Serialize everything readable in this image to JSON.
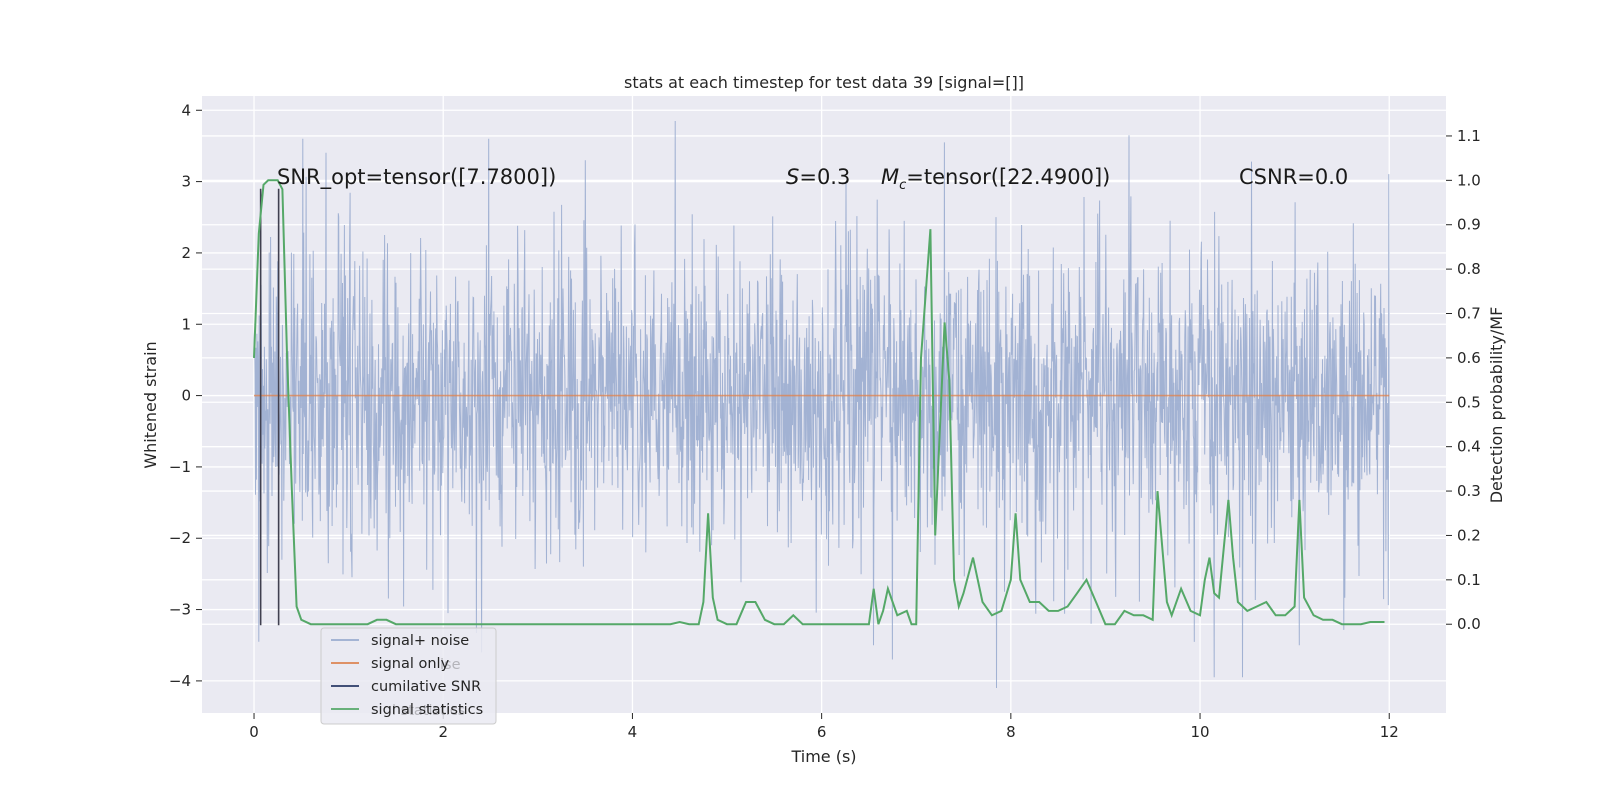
{
  "chart_data": {
    "type": "line",
    "title": "stats at each timestep for test data 39 [signal=[]]",
    "xlabel": "Time (s)",
    "ylabel_left": "Whitened strain",
    "ylabel_right": "Detection probability/MF",
    "xlim": [
      -0.55,
      12.6
    ],
    "ylim_left": [
      -4.45,
      4.2
    ],
    "ylim_right": [
      -0.2,
      1.19
    ],
    "x_ticks": [
      "0",
      "2",
      "4",
      "6",
      "8",
      "10",
      "12"
    ],
    "x_tick_values": [
      0,
      2,
      4,
      6,
      8,
      10,
      12
    ],
    "y_ticks_left": [
      "−4",
      "−3",
      "−2",
      "−1",
      "0",
      "1",
      "2",
      "3",
      "4"
    ],
    "y_tick_values_left": [
      -4,
      -3,
      -2,
      -1,
      0,
      1,
      2,
      3,
      4
    ],
    "y_ticks_right": [
      "0.0",
      "0.1",
      "0.2",
      "0.3",
      "0.4",
      "0.5",
      "0.6",
      "0.7",
      "0.8",
      "0.9",
      "1.0",
      "1.1"
    ],
    "y_tick_values_right": [
      0.0,
      0.1,
      0.2,
      0.3,
      0.4,
      0.5,
      0.6,
      0.7,
      0.8,
      0.9,
      1.0,
      1.1
    ],
    "annotations": {
      "snr_opt": "SNR_opt=tensor([7.7800])",
      "s_var": "S",
      "s_value": "=0.3",
      "mc_var": "M",
      "mc_sub": "c",
      "mc_value": "=tensor([22.4900])",
      "csnr": "CSNR=0.0"
    },
    "series": [
      {
        "name": "signal+ noise",
        "axis": "left",
        "color": "#9aaccf",
        "description_summary": {
          "x_range": [
            0,
            12
          ],
          "typical_range": [
            -1.2,
            1.2
          ],
          "extremes": [
            -4.1,
            3.85
          ]
        },
        "peaks": [
          {
            "x": 0.05,
            "y": -3.45
          },
          {
            "x": 4.45,
            "y": 3.85
          },
          {
            "x": 9.25,
            "y": 3.65
          },
          {
            "x": 7.3,
            "y": 3.55
          },
          {
            "x": 3.5,
            "y": 3.3
          },
          {
            "x": 7.85,
            "y": -4.1
          },
          {
            "x": 10.15,
            "y": -3.95
          },
          {
            "x": 10.45,
            "y": -3.95
          },
          {
            "x": 6.75,
            "y": -3.7
          },
          {
            "x": 6.55,
            "y": -3.5
          },
          {
            "x": 11.05,
            "y": -3.5
          },
          {
            "x": 8.85,
            "y": -3.2
          },
          {
            "x": 2.05,
            "y": -3.05
          }
        ]
      },
      {
        "name": "signal only",
        "axis": "left",
        "color": "#dd8452",
        "x": [
          0,
          12
        ],
        "y": [
          0,
          0
        ]
      },
      {
        "name": "cumilative SNR",
        "axis": "left",
        "color": "#2a3a66",
        "segments": [
          {
            "x": [
              0.07,
              0.07
            ],
            "y": [
              -3.22,
              2.9
            ]
          },
          {
            "x": 0.07,
            "y_min": -3.22,
            "y_max": 2.9
          },
          {
            "x": 0.26,
            "y_min": -3.22,
            "y_max": 2.9
          }
        ]
      },
      {
        "name": "signal statistics",
        "axis": "right",
        "color": "#55a868",
        "x": [
          0,
          0.05,
          0.1,
          0.15,
          0.2,
          0.25,
          0.3,
          0.35,
          0.4,
          0.45,
          0.5,
          0.6,
          0.7,
          0.8,
          1.0,
          1.1,
          1.2,
          1.3,
          1.4,
          1.5,
          1.6,
          1.8,
          1.9,
          2.0,
          2.1,
          2.4,
          2.8,
          3.2,
          3.6,
          4.0,
          4.2,
          4.4,
          4.5,
          4.6,
          4.7,
          4.75,
          4.8,
          4.85,
          4.9,
          5.0,
          5.1,
          5.2,
          5.3,
          5.4,
          5.5,
          5.6,
          5.7,
          5.8,
          6.0,
          6.2,
          6.4,
          6.5,
          6.55,
          6.6,
          6.65,
          6.7,
          6.8,
          6.9,
          6.95,
          7.0,
          7.05,
          7.15,
          7.2,
          7.3,
          7.35,
          7.4,
          7.45,
          7.5,
          7.6,
          7.7,
          7.8,
          7.9,
          8.0,
          8.05,
          8.1,
          8.2,
          8.3,
          8.4,
          8.5,
          8.6,
          8.7,
          8.8,
          8.9,
          9.0,
          9.1,
          9.2,
          9.3,
          9.4,
          9.5,
          9.55,
          9.65,
          9.7,
          9.8,
          9.9,
          10.0,
          10.05,
          10.1,
          10.15,
          10.2,
          10.3,
          10.35,
          10.4,
          10.5,
          10.6,
          10.7,
          10.8,
          10.9,
          11.0,
          11.05,
          11.1,
          11.2,
          11.3,
          11.4,
          11.5,
          11.6,
          11.7,
          11.8,
          11.9,
          11.95
        ],
        "y": [
          0.6,
          0.88,
          0.99,
          1.0,
          1.0,
          1.0,
          0.98,
          0.6,
          0.3,
          0.04,
          0.01,
          0.0,
          0.0,
          0.0,
          0.0,
          0.0,
          0.0,
          0.01,
          0.01,
          0.0,
          0.0,
          0.0,
          0.0,
          0.0,
          0.0,
          0.0,
          0.0,
          0.0,
          0.0,
          0.0,
          0.0,
          0.0,
          0.005,
          0.0,
          0.0,
          0.05,
          0.25,
          0.06,
          0.01,
          0.0,
          0.0,
          0.05,
          0.05,
          0.01,
          0.0,
          0.0,
          0.02,
          0.0,
          0.0,
          0.0,
          0.0,
          0.0,
          0.08,
          0.0,
          0.03,
          0.08,
          0.02,
          0.03,
          0.0,
          0.0,
          0.6,
          0.89,
          0.2,
          0.68,
          0.55,
          0.1,
          0.04,
          0.07,
          0.15,
          0.05,
          0.02,
          0.03,
          0.1,
          0.25,
          0.1,
          0.05,
          0.05,
          0.03,
          0.03,
          0.04,
          0.07,
          0.1,
          0.05,
          0.0,
          0.0,
          0.03,
          0.02,
          0.02,
          0.01,
          0.3,
          0.05,
          0.02,
          0.08,
          0.03,
          0.02,
          0.1,
          0.15,
          0.07,
          0.06,
          0.28,
          0.15,
          0.05,
          0.03,
          0.04,
          0.05,
          0.02,
          0.02,
          0.04,
          0.28,
          0.06,
          0.02,
          0.01,
          0.01,
          0.0,
          0.0,
          0.0,
          0.005,
          0.005,
          0.005
        ]
      }
    ],
    "legend": {
      "placement": "lower-left",
      "entries": [
        {
          "label": "signal+ noise",
          "color": "#9aaccf"
        },
        {
          "label": "signal only",
          "color": "#dd8452"
        },
        {
          "label": "cumilative SNR",
          "color": "#2a3a66"
        },
        {
          "label": "signal statistics",
          "color": "#55a868"
        }
      ],
      "ghost_labels": [
        "ise",
        "l statistics"
      ]
    }
  }
}
